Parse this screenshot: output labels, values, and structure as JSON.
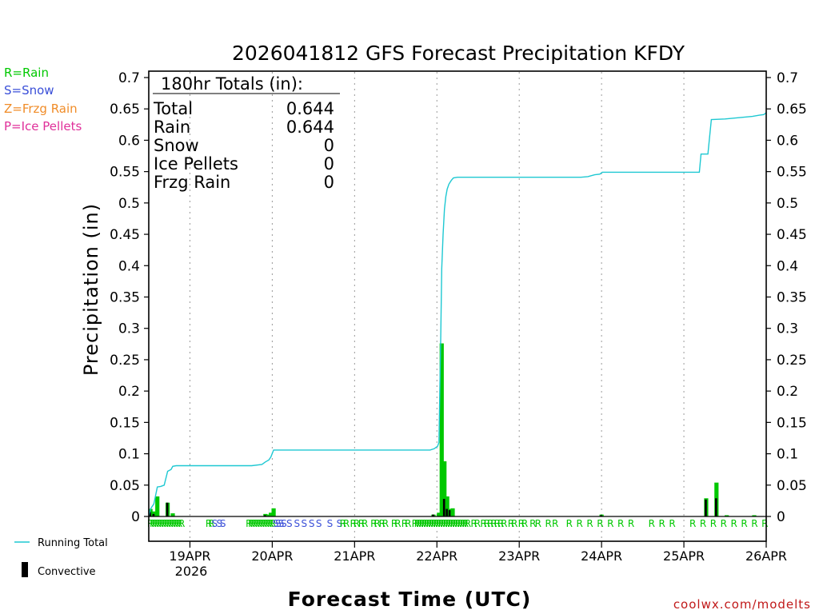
{
  "chart_data": {
    "type": "bar",
    "title": "2026041812 GFS Forecast Precipitation KFDY",
    "ylabel": "Precipitation (in)",
    "xlabel": "Forecast Time (UTC)",
    "ylim": [
      0,
      0.7
    ],
    "y_ticks": [
      "0",
      "0.05",
      "0.1",
      "0.15",
      "0.2",
      "0.25",
      "0.3",
      "0.35",
      "0.4",
      "0.45",
      "0.5",
      "0.55",
      "0.6",
      "0.65",
      "0.7"
    ],
    "x_range_hours": [
      12,
      192
    ],
    "x_ticks": [
      {
        "hour": 24,
        "label": "19APR"
      },
      {
        "hour": 48,
        "label": "20APR"
      },
      {
        "hour": 72,
        "label": "21APR"
      },
      {
        "hour": 96,
        "label": "22APR"
      },
      {
        "hour": 120,
        "label": "23APR"
      },
      {
        "hour": 144,
        "label": "24APR"
      },
      {
        "hour": 168,
        "label": "25APR"
      },
      {
        "hour": 192,
        "label": "26APR"
      }
    ],
    "year_label": "2026",
    "legend": {
      "rain": "R=Rain",
      "snow": "S=Snow",
      "frzg": "Z=Frzg Rain",
      "ice": "P=Ice Pellets",
      "running_total": "Running Total",
      "convective": "Convective"
    },
    "colors": {
      "rain": "#00c800",
      "snow": "#3a4fd8",
      "frzg": "#f08c28",
      "ice": "#e0309a",
      "running_total": "#1ec8d2",
      "convective": "#000000",
      "grid": "#9a9a9a"
    },
    "totals": {
      "header": "180hr Totals (in):",
      "rows": [
        {
          "label": "Total",
          "value": "0.644"
        },
        {
          "label": "Rain",
          "value": "0.644"
        },
        {
          "label": "Snow",
          "value": "0"
        },
        {
          "label": "Ice Pellets",
          "value": "0"
        },
        {
          "label": "Frzg Rain",
          "value": "0"
        }
      ]
    },
    "bars": [
      {
        "h": 12.5,
        "v": 0.012,
        "conv": 0.007
      },
      {
        "h": 13.5,
        "v": 0.008,
        "conv": 0.004
      },
      {
        "h": 14.5,
        "v": 0.032,
        "conv": 0.0
      },
      {
        "h": 17.5,
        "v": 0.022,
        "conv": 0.022
      },
      {
        "h": 19.0,
        "v": 0.005,
        "conv": 0.0
      },
      {
        "h": 46.0,
        "v": 0.004,
        "conv": 0.002
      },
      {
        "h": 46.8,
        "v": 0.003,
        "conv": 0.0
      },
      {
        "h": 47.6,
        "v": 0.006,
        "conv": 0.0
      },
      {
        "h": 48.4,
        "v": 0.013,
        "conv": 0.0
      },
      {
        "h": 95.0,
        "v": 0.003,
        "conv": 0.003
      },
      {
        "h": 96.6,
        "v": 0.006,
        "conv": 0.0
      },
      {
        "h": 97.4,
        "v": 0.276,
        "conv": 0.0
      },
      {
        "h": 98.2,
        "v": 0.088,
        "conv": 0.028
      },
      {
        "h": 99.0,
        "v": 0.032,
        "conv": 0.012
      },
      {
        "h": 99.8,
        "v": 0.012,
        "conv": 0.01
      },
      {
        "h": 100.6,
        "v": 0.013,
        "conv": 0.0
      },
      {
        "h": 144.0,
        "v": 0.003,
        "conv": 0.002
      },
      {
        "h": 174.5,
        "v": 0.029,
        "conv": 0.027
      },
      {
        "h": 177.5,
        "v": 0.054,
        "conv": 0.029
      },
      {
        "h": 180.5,
        "v": 0.002,
        "conv": 0.0
      },
      {
        "h": 188.5,
        "v": 0.002,
        "conv": 0.0
      }
    ],
    "running_total": [
      [
        12,
        0.0
      ],
      [
        12.5,
        0.012
      ],
      [
        13.5,
        0.02
      ],
      [
        14.5,
        0.047
      ],
      [
        15.5,
        0.048
      ],
      [
        16.5,
        0.05
      ],
      [
        17.5,
        0.072
      ],
      [
        18.5,
        0.075
      ],
      [
        19.0,
        0.08
      ],
      [
        20,
        0.081
      ],
      [
        24,
        0.081
      ],
      [
        30,
        0.081
      ],
      [
        36,
        0.081
      ],
      [
        42,
        0.081
      ],
      [
        45,
        0.083
      ],
      [
        46,
        0.087
      ],
      [
        47,
        0.09
      ],
      [
        47.6,
        0.095
      ],
      [
        48.4,
        0.106
      ],
      [
        50,
        0.106
      ],
      [
        60,
        0.106
      ],
      [
        72,
        0.106
      ],
      [
        84,
        0.106
      ],
      [
        94,
        0.106
      ],
      [
        95.2,
        0.108
      ],
      [
        96.2,
        0.112
      ],
      [
        96.6,
        0.118
      ],
      [
        97.1,
        0.28
      ],
      [
        97.4,
        0.395
      ],
      [
        97.8,
        0.45
      ],
      [
        98.2,
        0.49
      ],
      [
        98.6,
        0.51
      ],
      [
        99.0,
        0.522
      ],
      [
        99.5,
        0.53
      ],
      [
        100.2,
        0.536
      ],
      [
        100.8,
        0.54
      ],
      [
        102,
        0.541
      ],
      [
        110,
        0.541
      ],
      [
        120,
        0.541
      ],
      [
        132,
        0.541
      ],
      [
        138,
        0.541
      ],
      [
        140,
        0.542
      ],
      [
        142,
        0.545
      ],
      [
        143.5,
        0.546
      ],
      [
        144.2,
        0.549
      ],
      [
        146,
        0.549
      ],
      [
        156,
        0.549
      ],
      [
        168,
        0.549
      ],
      [
        172.5,
        0.549
      ],
      [
        173.0,
        0.578
      ],
      [
        175.0,
        0.578
      ],
      [
        175.5,
        0.605
      ],
      [
        176.0,
        0.633
      ],
      [
        180,
        0.634
      ],
      [
        184,
        0.636
      ],
      [
        188,
        0.638
      ],
      [
        190,
        0.64
      ],
      [
        191.3,
        0.641
      ],
      [
        192,
        0.644
      ]
    ],
    "ptype_strip": [
      {
        "h": 12.5,
        "t": "R"
      },
      {
        "h": 13.2,
        "t": "R"
      },
      {
        "h": 13.9,
        "t": "R"
      },
      {
        "h": 14.6,
        "t": "R"
      },
      {
        "h": 15.3,
        "t": "R"
      },
      {
        "h": 16.0,
        "t": "R"
      },
      {
        "h": 16.7,
        "t": "R"
      },
      {
        "h": 17.4,
        "t": "R"
      },
      {
        "h": 18.1,
        "t": "R"
      },
      {
        "h": 18.8,
        "t": "R"
      },
      {
        "h": 19.5,
        "t": "R"
      },
      {
        "h": 20.2,
        "t": "R"
      },
      {
        "h": 20.9,
        "t": "R"
      },
      {
        "h": 21.6,
        "t": "R"
      },
      {
        "h": 29.5,
        "t": "R"
      },
      {
        "h": 30.3,
        "t": "R"
      },
      {
        "h": 31.2,
        "t": "S"
      },
      {
        "h": 32.6,
        "t": "S"
      },
      {
        "h": 33.6,
        "t": "S"
      },
      {
        "h": 41.2,
        "t": "R"
      },
      {
        "h": 41.9,
        "t": "R"
      },
      {
        "h": 42.6,
        "t": "R"
      },
      {
        "h": 43.3,
        "t": "R"
      },
      {
        "h": 44.0,
        "t": "R"
      },
      {
        "h": 44.7,
        "t": "R"
      },
      {
        "h": 45.4,
        "t": "R"
      },
      {
        "h": 46.1,
        "t": "R"
      },
      {
        "h": 46.8,
        "t": "R"
      },
      {
        "h": 47.5,
        "t": "R"
      },
      {
        "h": 48.2,
        "t": "R"
      },
      {
        "h": 49.0,
        "t": "S"
      },
      {
        "h": 49.8,
        "t": "S"
      },
      {
        "h": 50.6,
        "t": "S"
      },
      {
        "h": 51.4,
        "t": "S"
      },
      {
        "h": 53.0,
        "t": "S"
      },
      {
        "h": 55.2,
        "t": "S"
      },
      {
        "h": 57.3,
        "t": "S"
      },
      {
        "h": 59.5,
        "t": "S"
      },
      {
        "h": 61.6,
        "t": "S"
      },
      {
        "h": 64.8,
        "t": "S"
      },
      {
        "h": 67.6,
        "t": "S"
      },
      {
        "h": 68.6,
        "t": "R"
      },
      {
        "h": 69.6,
        "t": "R"
      },
      {
        "h": 71.6,
        "t": "R"
      },
      {
        "h": 72.6,
        "t": "R"
      },
      {
        "h": 74.0,
        "t": "R"
      },
      {
        "h": 75.0,
        "t": "R"
      },
      {
        "h": 77.6,
        "t": "R"
      },
      {
        "h": 78.6,
        "t": "R"
      },
      {
        "h": 80.0,
        "t": "R"
      },
      {
        "h": 81.0,
        "t": "R"
      },
      {
        "h": 83.6,
        "t": "R"
      },
      {
        "h": 84.6,
        "t": "R"
      },
      {
        "h": 86.6,
        "t": "R"
      },
      {
        "h": 87.6,
        "t": "R"
      },
      {
        "h": 89.6,
        "t": "R"
      },
      {
        "h": 90.3,
        "t": "R"
      },
      {
        "h": 91.0,
        "t": "R"
      },
      {
        "h": 91.7,
        "t": "R"
      },
      {
        "h": 92.4,
        "t": "R"
      },
      {
        "h": 93.1,
        "t": "R"
      },
      {
        "h": 93.8,
        "t": "R"
      },
      {
        "h": 94.5,
        "t": "R"
      },
      {
        "h": 95.2,
        "t": "R"
      },
      {
        "h": 95.9,
        "t": "R"
      },
      {
        "h": 96.6,
        "t": "R"
      },
      {
        "h": 97.3,
        "t": "R"
      },
      {
        "h": 98.0,
        "t": "R"
      },
      {
        "h": 98.7,
        "t": "R"
      },
      {
        "h": 99.4,
        "t": "R"
      },
      {
        "h": 100.1,
        "t": "R"
      },
      {
        "h": 100.8,
        "t": "R"
      },
      {
        "h": 101.5,
        "t": "R"
      },
      {
        "h": 102.2,
        "t": "R"
      },
      {
        "h": 102.9,
        "t": "R"
      },
      {
        "h": 103.6,
        "t": "R"
      },
      {
        "h": 104.3,
        "t": "R"
      },
      {
        "h": 105.0,
        "t": "R"
      },
      {
        "h": 106.8,
        "t": "R"
      },
      {
        "h": 107.8,
        "t": "R"
      },
      {
        "h": 109.6,
        "t": "R"
      },
      {
        "h": 110.6,
        "t": "R"
      },
      {
        "h": 111.6,
        "t": "R"
      },
      {
        "h": 112.6,
        "t": "R"
      },
      {
        "h": 113.6,
        "t": "R"
      },
      {
        "h": 114.6,
        "t": "R"
      },
      {
        "h": 115.6,
        "t": "R"
      },
      {
        "h": 117.6,
        "t": "R"
      },
      {
        "h": 118.6,
        "t": "R"
      },
      {
        "h": 120.6,
        "t": "R"
      },
      {
        "h": 121.6,
        "t": "R"
      },
      {
        "h": 124.0,
        "t": "R"
      },
      {
        "h": 125.5,
        "t": "R"
      },
      {
        "h": 128.5,
        "t": "R"
      },
      {
        "h": 130.5,
        "t": "R"
      },
      {
        "h": 134.6,
        "t": "R"
      },
      {
        "h": 137.6,
        "t": "R"
      },
      {
        "h": 140.6,
        "t": "R"
      },
      {
        "h": 143.6,
        "t": "R"
      },
      {
        "h": 146.6,
        "t": "R"
      },
      {
        "h": 149.6,
        "t": "R"
      },
      {
        "h": 152.6,
        "t": "R"
      },
      {
        "h": 158.6,
        "t": "R"
      },
      {
        "h": 161.6,
        "t": "R"
      },
      {
        "h": 164.6,
        "t": "R"
      },
      {
        "h": 170.6,
        "t": "R"
      },
      {
        "h": 173.6,
        "t": "R"
      },
      {
        "h": 176.6,
        "t": "R"
      },
      {
        "h": 179.6,
        "t": "R"
      },
      {
        "h": 182.6,
        "t": "R"
      },
      {
        "h": 185.6,
        "t": "R"
      },
      {
        "h": 188.6,
        "t": "R"
      },
      {
        "h": 191.6,
        "t": "R"
      }
    ],
    "credit": "coolwx.com/modelts"
  }
}
